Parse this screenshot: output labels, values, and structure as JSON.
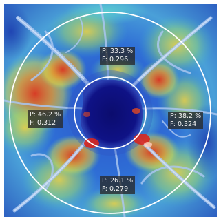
{
  "sectors": {
    "superior": {
      "p": "P: 33.3 %",
      "f": "F: 0.296"
    },
    "temporal": {
      "p": "P: 46.2 %",
      "f": "F: 0.312"
    },
    "nasal": {
      "p": "P: 38.2 %",
      "f": "F: 0.324"
    },
    "inferior": {
      "p": "P: 26.1 %",
      "f": "F: 0.279"
    }
  }
}
